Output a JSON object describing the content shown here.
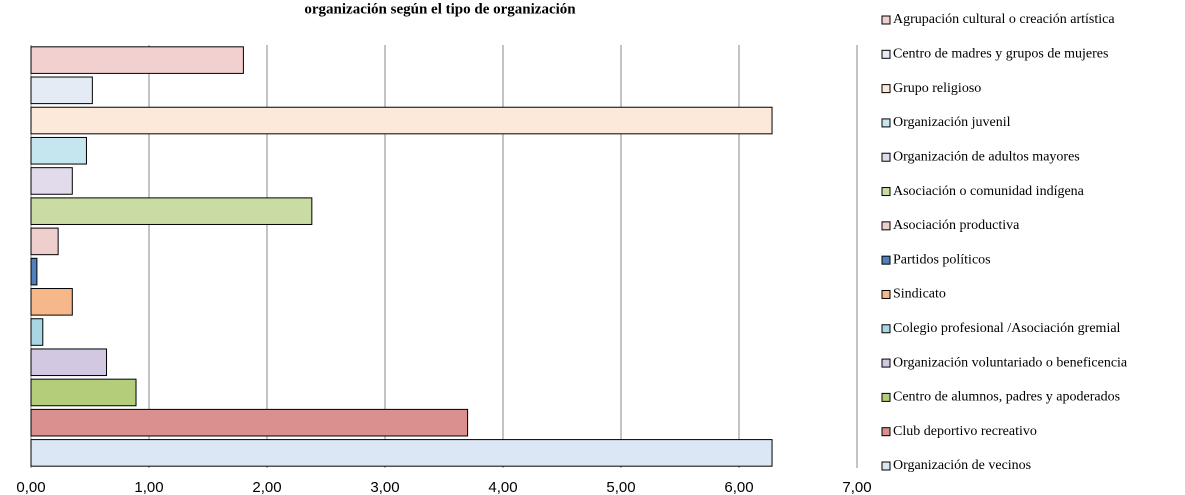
{
  "chart_data": {
    "type": "hbar",
    "title": "organización según el tipo de organización",
    "categories": [
      "Agrupación cultural o creación artística",
      "Centro de madres y grupos de mujeres",
      "Grupo religioso",
      "Organización juvenil",
      "Organización de adultos mayores",
      "Asociación o comunidad indígena",
      "Asociación productiva",
      "Partidos políticos",
      "Sindicato",
      "Colegio profesional /Asociación gremial",
      "Organización voluntariado o beneficencia",
      "Centro de alumnos, padres y apoderados",
      "Club deportivo recreativo",
      "Organización de vecinos"
    ],
    "values": [
      1.8,
      0.52,
      6.28,
      0.47,
      0.35,
      2.38,
      0.23,
      0.05,
      0.35,
      0.1,
      0.64,
      0.89,
      3.7,
      6.28
    ],
    "colors": [
      "#f2d0d0",
      "#e4ebf5",
      "#fde9d9",
      "#c5e6ee",
      "#e2dbec",
      "#c9dca3",
      "#efcfce",
      "#4f81bd",
      "#f6b88a",
      "#a9d6e3",
      "#d3c8e1",
      "#b3cd7a",
      "#d9908e",
      "#dbe7f5"
    ],
    "xlim": [
      0,
      7
    ],
    "xticks": [
      {
        "value": 0,
        "label": "0,00"
      },
      {
        "value": 1,
        "label": "1,00"
      },
      {
        "value": 2,
        "label": "2,00"
      },
      {
        "value": 3,
        "label": "3,00"
      },
      {
        "value": 4,
        "label": "4,00"
      },
      {
        "value": 5,
        "label": "5,00"
      },
      {
        "value": 6,
        "label": "6,00"
      },
      {
        "value": 7,
        "label": "7,00"
      }
    ],
    "grid": true,
    "legend": "right"
  }
}
